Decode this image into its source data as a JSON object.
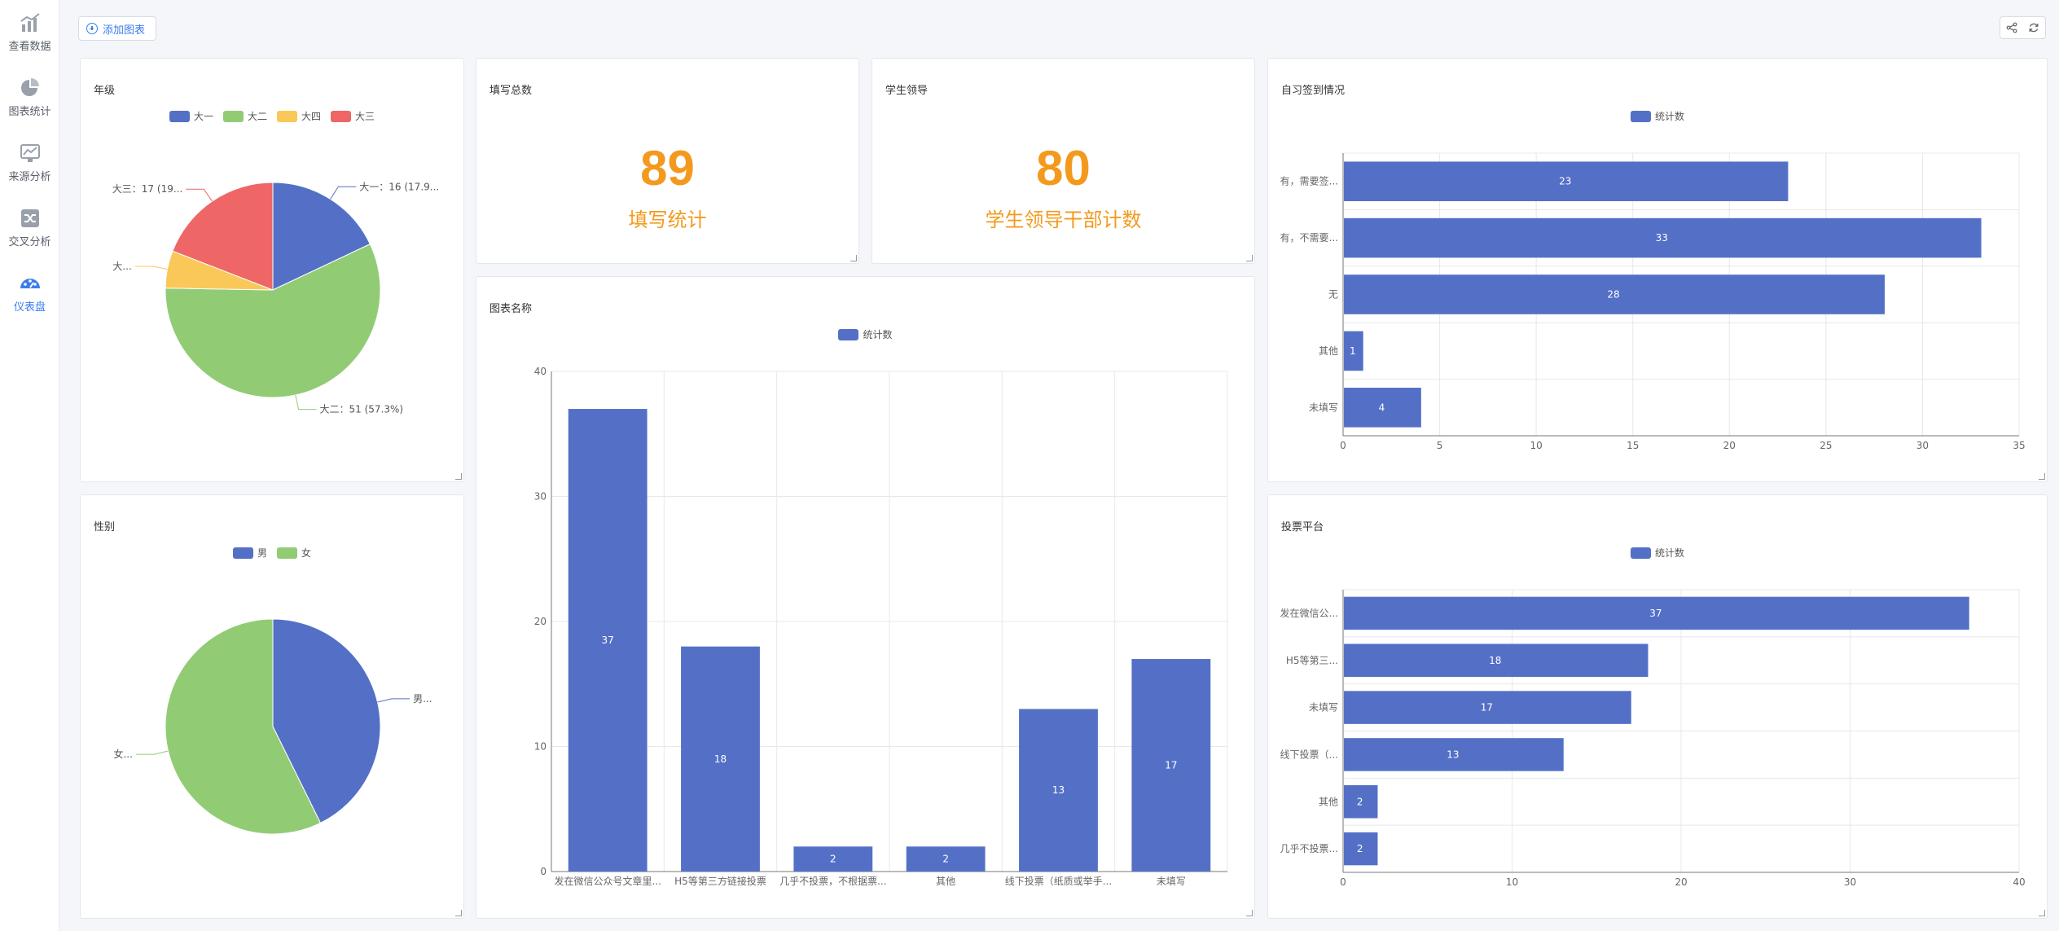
{
  "sidebar": {
    "items": [
      {
        "label": "查看数据",
        "icon": "bar-chart-icon",
        "active": false
      },
      {
        "label": "图表统计",
        "icon": "pie-chart-icon",
        "active": false
      },
      {
        "label": "来源分析",
        "icon": "trend-icon",
        "active": false
      },
      {
        "label": "交叉分析",
        "icon": "shuffle-icon",
        "active": false
      },
      {
        "label": "仪表盘",
        "icon": "dashboard-icon",
        "active": true
      }
    ]
  },
  "toolbar": {
    "add_chart_label": "添加图表",
    "share_icon": "share-icon",
    "refresh_icon": "refresh-icon"
  },
  "colors": {
    "blue": "#5470c6",
    "green": "#91cc75",
    "yellow": "#fac858",
    "red": "#ee6666",
    "orange": "#f39a1e",
    "accent": "#3b7ded"
  },
  "cards": {
    "grade": {
      "title": "年级"
    },
    "total": {
      "title": "填写总数",
      "value": "89",
      "label": "填写统计"
    },
    "leader": {
      "title": "学生领导",
      "value": "80",
      "label": "学生领导干部计数"
    },
    "checkin": {
      "title": "自习签到情况"
    },
    "chartname": {
      "title": "图表名称"
    },
    "gender": {
      "title": "性别"
    },
    "vote": {
      "title": "投票平台"
    }
  },
  "chart_data": [
    {
      "id": "grade",
      "type": "pie",
      "title": "年级",
      "legend": [
        "大一",
        "大二",
        "大四",
        "大三"
      ],
      "slices": [
        {
          "name": "大一",
          "value": 16,
          "color": "#5470c6",
          "label": "大一：16 (17.9..."
        },
        {
          "name": "大二",
          "value": 51,
          "color": "#91cc75",
          "label": "大二：51 (57.3%)"
        },
        {
          "name": "大四",
          "value": 5,
          "color": "#fac858",
          "label": "大..."
        },
        {
          "name": "大三",
          "value": 17,
          "color": "#ee6666",
          "label": "大三：17 (19..."
        }
      ]
    },
    {
      "id": "gender",
      "type": "pie",
      "title": "性别",
      "legend": [
        "男",
        "女"
      ],
      "slices": [
        {
          "name": "男",
          "value": 38,
          "color": "#5470c6",
          "label": "男..."
        },
        {
          "name": "女",
          "value": 51,
          "color": "#91cc75",
          "label": "女..."
        }
      ]
    },
    {
      "id": "checkin",
      "type": "bar",
      "orientation": "horizontal",
      "title": "自习签到情况",
      "legend": [
        "统计数"
      ],
      "categories": [
        "有，需要签...",
        "有，不需要...",
        "无",
        "其他",
        "未填写"
      ],
      "series": [
        {
          "name": "统计数",
          "values": [
            23,
            33,
            28,
            1,
            4
          ]
        }
      ],
      "xlim": [
        0,
        35
      ],
      "ticks": [
        0,
        5,
        10,
        15,
        20,
        25,
        30,
        35
      ]
    },
    {
      "id": "chartname",
      "type": "bar",
      "orientation": "vertical",
      "title": "图表名称",
      "legend": [
        "统计数"
      ],
      "categories": [
        "发在微信公众号文章里...",
        "H5等第三方链接投票",
        "几乎不投票，不根据票...",
        "其他",
        "线下投票（纸质或举手...",
        "未填写"
      ],
      "series": [
        {
          "name": "统计数",
          "values": [
            37,
            18,
            2,
            2,
            13,
            17
          ]
        }
      ],
      "ylim": [
        0,
        40
      ],
      "ticks": [
        0,
        10,
        20,
        30,
        40
      ]
    },
    {
      "id": "vote",
      "type": "bar",
      "orientation": "horizontal",
      "title": "投票平台",
      "legend": [
        "统计数"
      ],
      "categories": [
        "发在微信公...",
        "H5等第三...",
        "未填写",
        "线下投票（...",
        "其他",
        "几乎不投票..."
      ],
      "series": [
        {
          "name": "统计数",
          "values": [
            37,
            18,
            17,
            13,
            2,
            2
          ]
        }
      ],
      "xlim": [
        0,
        40
      ],
      "ticks": [
        0,
        10,
        20,
        30,
        40
      ]
    }
  ]
}
